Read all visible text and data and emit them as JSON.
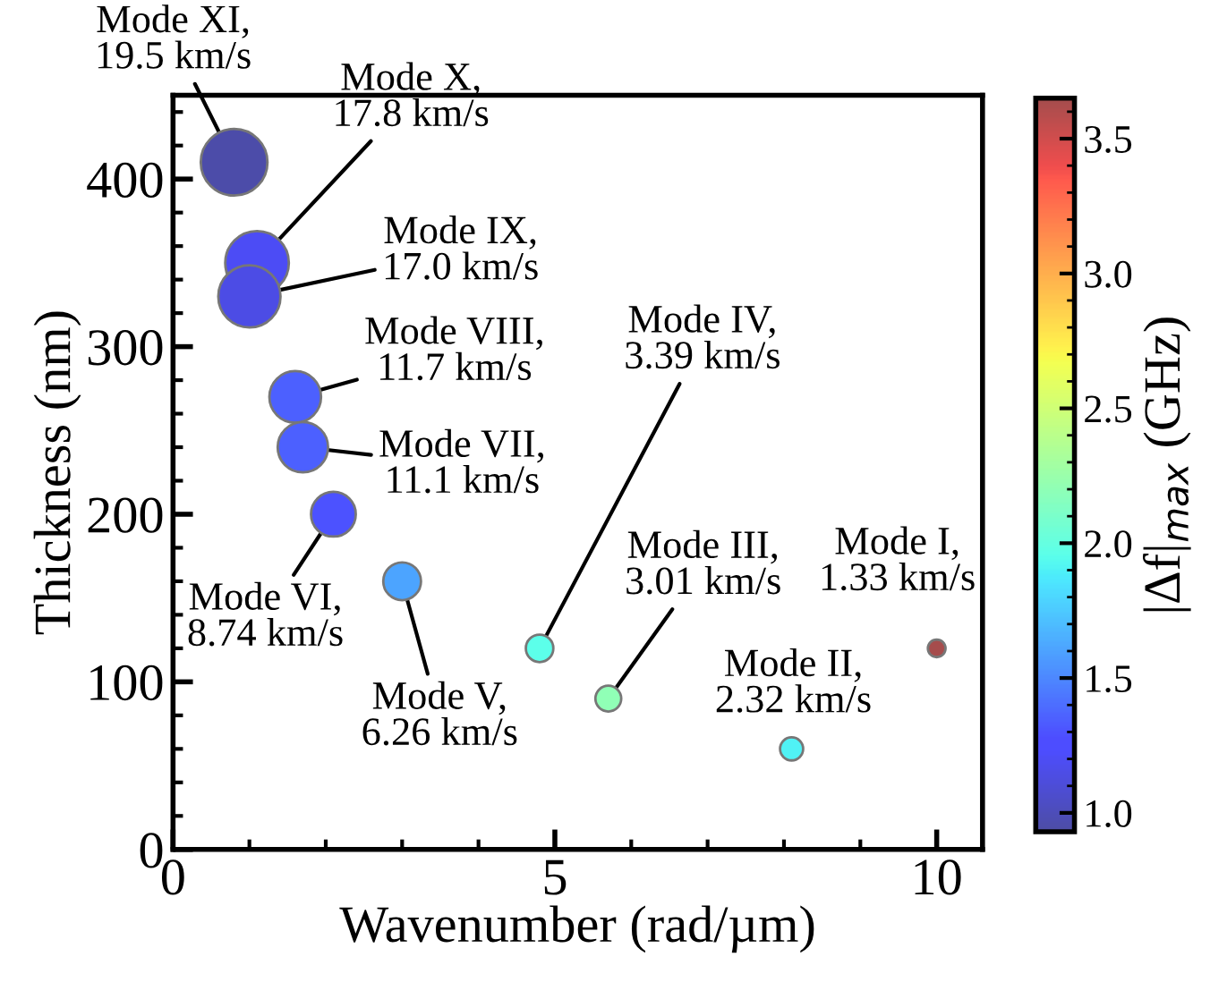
{
  "chart_data": {
    "type": "bubble",
    "xlabel": "Wavenumber (rad/µm)",
    "ylabel": "Thickness (nm)",
    "clabel": "|Δf|$_{max}$ (GHz)",
    "x": [
      0.8,
      1.1,
      1.0,
      1.6,
      1.7,
      2.1,
      3.0,
      4.8,
      5.7,
      8.1,
      10.0
    ],
    "values": [
      410,
      350,
      330,
      270,
      240,
      200,
      160,
      120,
      90,
      60,
      120
    ],
    "sizes": [
      1,
      0.91,
      0.87,
      0.6,
      0.57,
      0.45,
      0.32,
      0.17,
      0.15,
      0.12,
      0.07
    ],
    "cvalues": [
      0.95,
      1.2,
      1.15,
      1.35,
      1.35,
      1.3,
      1.6,
      1.95,
      2.2,
      1.9,
      3.65
    ],
    "xlim": [
      0,
      10.6
    ],
    "xticks": [
      0,
      5,
      10
    ],
    "ylim": [
      0,
      450
    ],
    "yticks": [
      0,
      100,
      200,
      300,
      400
    ],
    "clim": [
      0.93,
      3.65
    ],
    "cticks": [
      {
        "value": 1.0,
        "label": "1.0"
      },
      {
        "value": 1.5,
        "label": "1.5"
      },
      {
        "value": 2.0,
        "label": "2.0"
      },
      {
        "value": 2.5,
        "label": "2.5"
      },
      {
        "value": 3.0,
        "label": "3.0"
      },
      {
        "value": 3.5,
        "label": "3.5"
      }
    ],
    "grid": false,
    "annotations": [
      {
        "text": "Mode XI,\n19.5 km/s",
        "x": 0.8,
        "y": 410
      },
      {
        "text": "Mode X,\n17.8 km/s",
        "x": 1.1,
        "y": 350
      },
      {
        "text": "Mode IX,\n17.0 km/s",
        "x": 1.0,
        "y": 330
      },
      {
        "text": "Mode VIII,\n11.7 km/s",
        "x": 1.6,
        "y": 270
      },
      {
        "text": "Mode VII,\n11.1 km/s",
        "x": 1.7,
        "y": 240
      },
      {
        "text": "Mode VI,\n8.74 km/s",
        "x": 2.1,
        "y": 200
      },
      {
        "text": "Mode V,\n6.26 km/s",
        "x": 3.0,
        "y": 160
      },
      {
        "text": "Mode IV,\n3.39 km/s",
        "x": 4.8,
        "y": 120
      },
      {
        "text": "Mode III,\n3.01 km/s",
        "x": 5.7,
        "y": 90
      },
      {
        "text": "Mode II,\n2.32 km/s",
        "x": 8.1,
        "y": 60
      },
      {
        "text": "Mode I,\n1.33 km/s",
        "x": 10.0,
        "y": 120
      }
    ]
  }
}
